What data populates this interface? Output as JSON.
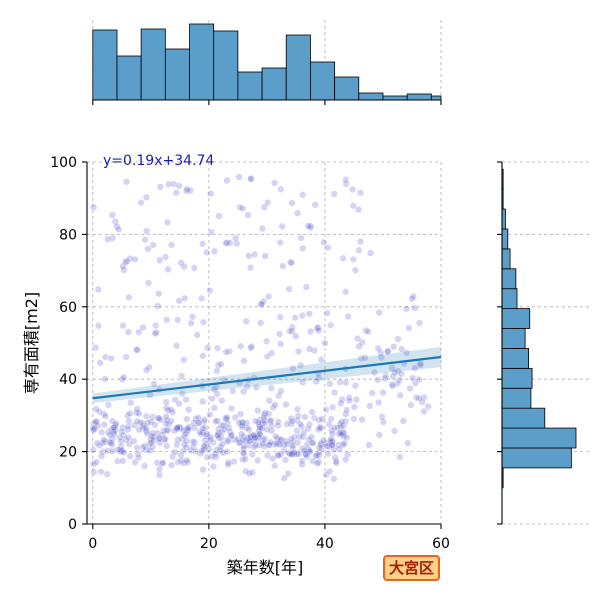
{
  "chart_data": {
    "type": "scatter",
    "xlabel": "築年数[年]",
    "ylabel": "専有面積[m2]",
    "xlim": [
      -1,
      60
    ],
    "ylim": [
      0,
      100
    ],
    "x_ticks": [
      0,
      20,
      40,
      60
    ],
    "y_ticks": [
      0,
      20,
      40,
      60,
      80,
      100
    ],
    "grid": true,
    "point_color": "#3f3fc8",
    "regression": {
      "label": "y=0.19x+34.74",
      "slope": 0.19,
      "intercept": 34.74,
      "color": "#1f77b4",
      "label_color": "#1c1cb4"
    },
    "marginal_x_hist": {
      "bin_edges": [
        0,
        4.17,
        8.33,
        12.5,
        16.67,
        20.83,
        25,
        29.17,
        33.33,
        37.5,
        41.67,
        45.83,
        50,
        54.17,
        58.33,
        60
      ],
      "counts": [
        70,
        44,
        71,
        51,
        76,
        69,
        28,
        32,
        65,
        38,
        23,
        7,
        4,
        6,
        4
      ],
      "color": "#5b9ec9"
    },
    "marginal_y_hist": {
      "bin_edges": [
        10,
        15.5,
        21,
        26.5,
        32,
        37.5,
        43,
        48.5,
        54,
        59.5,
        65,
        70.5,
        76,
        81.5,
        87,
        92.5,
        98
      ],
      "counts": [
        1,
        60,
        64,
        37,
        25,
        26,
        23,
        20,
        24,
        13,
        12,
        7,
        5,
        3,
        1,
        1
      ],
      "color": "#5b9ec9"
    },
    "badge": "大宮区"
  }
}
